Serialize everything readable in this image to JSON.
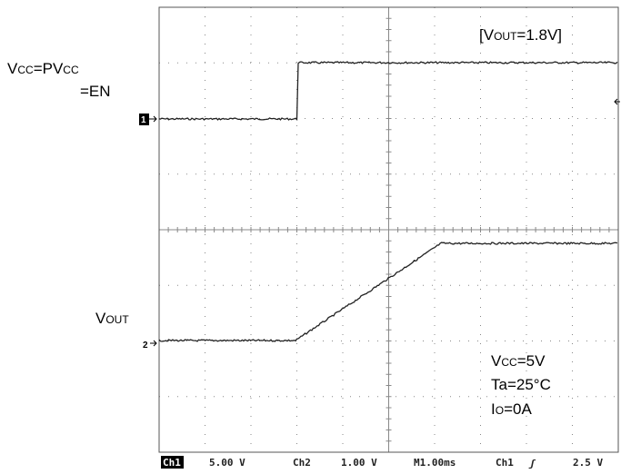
{
  "labels": {
    "vcc_pvcc": [
      "V",
      "CC",
      "=PV",
      "CC"
    ],
    "en": "=EN",
    "vout_setting": [
      "[V",
      "OUT",
      "=1.8V]"
    ],
    "vout": [
      "V",
      "OUT"
    ],
    "vcc": [
      "V",
      "CC",
      "=5V"
    ],
    "ta": "Ta=25°C",
    "io": [
      "I",
      "O",
      "=0A"
    ],
    "ch1_marker": "1",
    "ch2_marker": "2"
  },
  "status_bar": {
    "ch1": "Ch1",
    "ch1_scale": "5.00 V",
    "ch2": "Ch2",
    "ch2_scale": "1.00 V",
    "timebase": "M1.00ms",
    "trigger_source": "Ch1",
    "trigger_slope": "ʃ",
    "trigger_level": "2.5 V"
  }
}
